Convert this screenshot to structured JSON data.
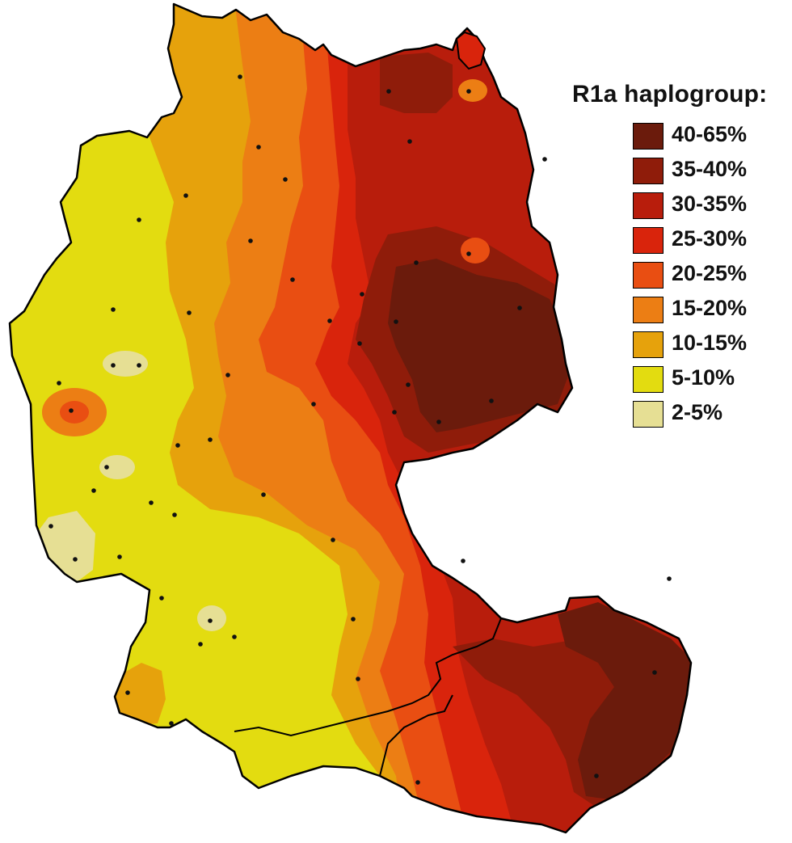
{
  "legend": {
    "title": "R1a haplogroup:",
    "items": [
      {
        "label": "40-65%",
        "color": "#6b1b0c"
      },
      {
        "label": "35-40%",
        "color": "#8f1c0a"
      },
      {
        "label": "30-35%",
        "color": "#b81d0c"
      },
      {
        "label": "25-30%",
        "color": "#d9240c"
      },
      {
        "label": "20-25%",
        "color": "#e94e12"
      },
      {
        "label": "15-20%",
        "color": "#ec7e14"
      },
      {
        "label": "10-15%",
        "color": "#e6a20c"
      },
      {
        "label": "5-10%",
        "color": "#e3dc10"
      },
      {
        "label": "2-5%",
        "color": "#e6df94"
      }
    ]
  },
  "map": {
    "border_color": "#000000",
    "sample_dot_color": "#111111"
  }
}
